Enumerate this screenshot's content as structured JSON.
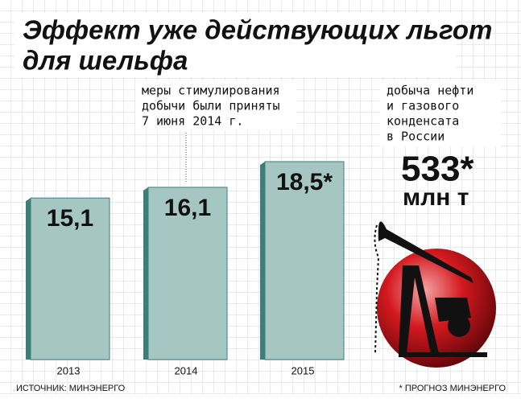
{
  "chart_data": {
    "type": "bar",
    "title": [
      "Эффект уже действующих льгот",
      "для шельфа"
    ],
    "annotation": [
      "меры стимулирования",
      "добычи были приняты",
      "7 июня 2014 г."
    ],
    "categories": [
      "2013",
      "2014",
      "2015"
    ],
    "values": [
      15.1,
      16.1,
      18.5
    ],
    "value_labels": [
      "15,1",
      "16,1",
      "18,5*"
    ],
    "color": "#a6c6c2",
    "ylim": [
      0,
      20
    ],
    "side_note": [
      "добыча нефти",
      "и газового",
      "конденсата",
      "в России"
    ],
    "total": "533*",
    "total_unit": "млн т",
    "source": "ИСТОЧНИК: МИНЭНЕРГО",
    "footnote": "* ПРОГНОЗ МИНЭНЕРГО"
  }
}
